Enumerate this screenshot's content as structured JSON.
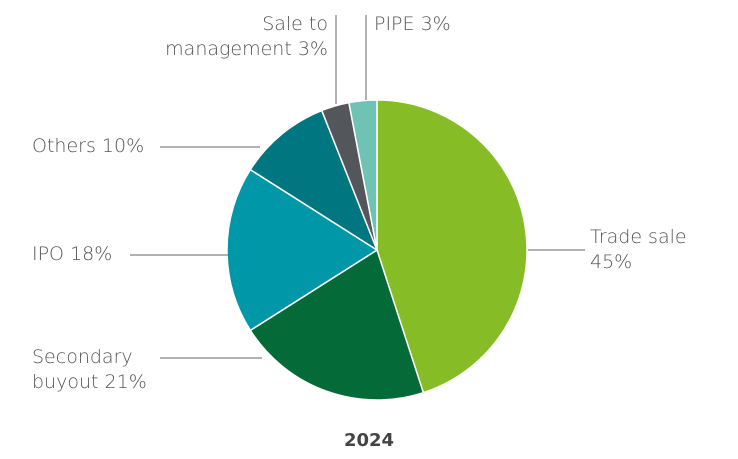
{
  "chart_data": {
    "type": "pie",
    "title": "2024",
    "categories": [
      "Trade sale",
      "Secondary buyout",
      "IPO",
      "Others",
      "Sale to management",
      "PIPE"
    ],
    "values": [
      45,
      21,
      18,
      10,
      3,
      3
    ],
    "value_labels": [
      "45%",
      "21%",
      "18%",
      "10%",
      "3%",
      "3%"
    ],
    "colors": [
      "#86bc25",
      "#046a38",
      "#0097a9",
      "#007680",
      "#53565a",
      "#6fc2b4"
    ]
  }
}
